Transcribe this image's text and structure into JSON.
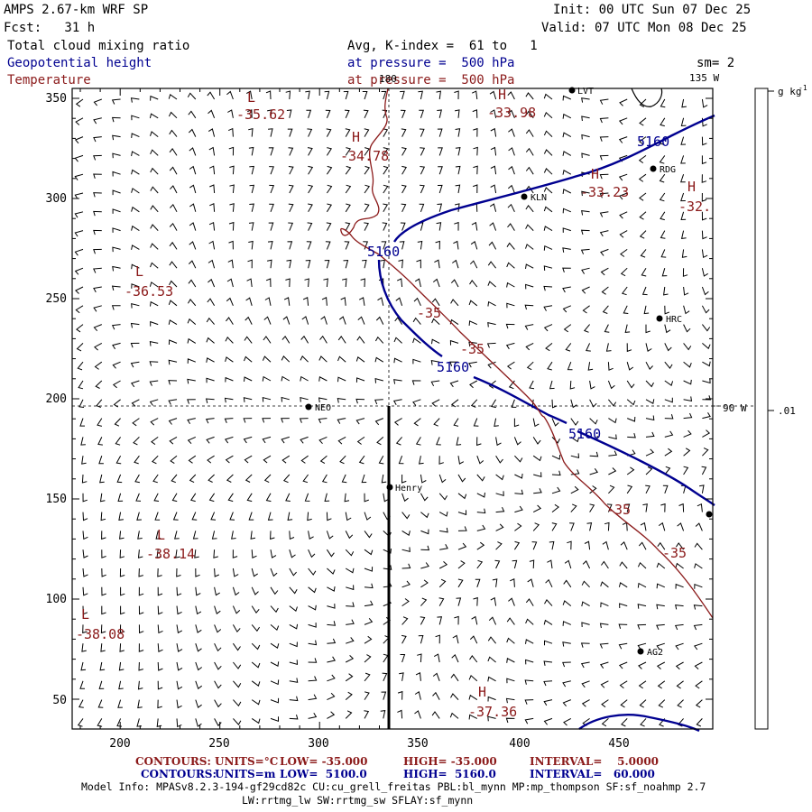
{
  "header": {
    "model_title": "AMPS 2.67-km WRF SP",
    "forecast": "Fcst:   31 h",
    "init": "Init: 00 UTC Sun 07 Dec 25",
    "valid": "Valid: 07 UTC Mon 08 Dec 25",
    "fields": [
      "Total cloud mixing ratio",
      "Geopotential height",
      "Temperature"
    ],
    "avg_label": "Avg, K-index =  61 to   1",
    "pressure_label_1": "at pressure =  500 hPa",
    "pressure_label_2": "at pressure =  500 hPa",
    "smoothing": "sm= 2"
  },
  "colors": {
    "height": "#000090",
    "temperature": "#8b1a1a",
    "barb": "#000000",
    "frame": "#000000"
  },
  "axes": {
    "x_ticks": [
      "200",
      "250",
      "300",
      "350",
      "400",
      "450"
    ],
    "y_ticks": [
      "50",
      "100",
      "150",
      "200",
      "250",
      "300",
      "350"
    ],
    "lon_label_top": "180",
    "lon_label_135": "135 W",
    "lon_label_90": "90 W"
  },
  "colorbar": {
    "unit_label": "g kg",
    "unit_exponent": "-1",
    "tick_label": ".01"
  },
  "stations": [
    {
      "name": "KLN"
    },
    {
      "name": "RDG"
    },
    {
      "name": "HRC"
    },
    {
      "name": "NEO"
    },
    {
      "name": "Henry"
    },
    {
      "name": "AG2"
    },
    {
      "name": "LVT"
    },
    {
      "name": ""
    }
  ],
  "temperature_labels": [
    {
      "letter": "L",
      "value": "-35.62"
    },
    {
      "letter": "H",
      "value": "-33.98"
    },
    {
      "letter": "H",
      "value": "-34.78"
    },
    {
      "letter": "H",
      "value": "-33.23"
    },
    {
      "letter": "H",
      "value": "-32."
    },
    {
      "letter": "L",
      "value": "-36.53"
    },
    {
      "letter": "L",
      "value": "-38.14"
    },
    {
      "letter": "L",
      "value": "-38.08"
    },
    {
      "letter": "H",
      "value": "-37.36"
    }
  ],
  "contour_labels": {
    "temp": [
      "-35",
      "-35",
      "-35",
      "-35"
    ],
    "height": [
      "5160",
      "5160",
      "5160",
      "5160"
    ]
  },
  "footer": {
    "line1": {
      "label": "CONTOURS:",
      "units": "UNITS=°C",
      "low": "LOW= -35.000",
      "high": "HIGH= -35.000",
      "interval": "INTERVAL=    5.0000"
    },
    "line2": {
      "label": "CONTOURS:",
      "units": "UNITS=m",
      "low": "LOW=  5100.0",
      "high": "HIGH=  5160.0",
      "interval": "INTERVAL=   60.000"
    },
    "model_info": "Model Info: MPASv8.2.3-194-gf29cd82c CU:cu_grell_freitas PBL:bl_mynn MP:mp_thompson SF:sf_noahmp 2.7",
    "model_info_2": "LW:rrtmg_lw SW:rrtmg_sw SFLAY:sf_mynn"
  }
}
